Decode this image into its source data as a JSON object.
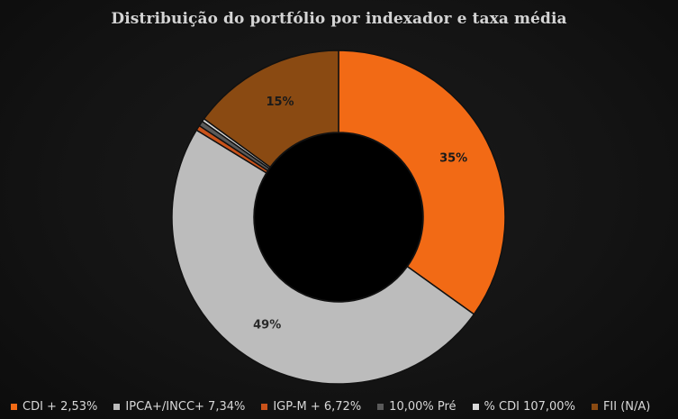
{
  "chart_data": {
    "type": "pie",
    "title": "Distribuição do portfólio por indexador e taxa média",
    "series": [
      {
        "name": "CDI + 2,53%",
        "value": 35,
        "label": "35%",
        "color": "#f26a15"
      },
      {
        "name": "IPCA+/INCC+ 7,34%",
        "value": 49,
        "label": "49%",
        "color": "#bcbcbc"
      },
      {
        "name": "IGP-M + 6,72%",
        "value": 0.5,
        "label": "",
        "color": "#c9521a"
      },
      {
        "name": "10,00% Pré",
        "value": 0.5,
        "label": "",
        "color": "#5a5a5a"
      },
      {
        "name": "% CDI 107,00%",
        "value": 0.3,
        "label": "",
        "color": "#d9d9d9"
      },
      {
        "name": "FII (N/A)",
        "value": 15,
        "label": "15%",
        "color": "#8a4a12"
      }
    ],
    "legend_position": "bottom",
    "donut": true
  }
}
